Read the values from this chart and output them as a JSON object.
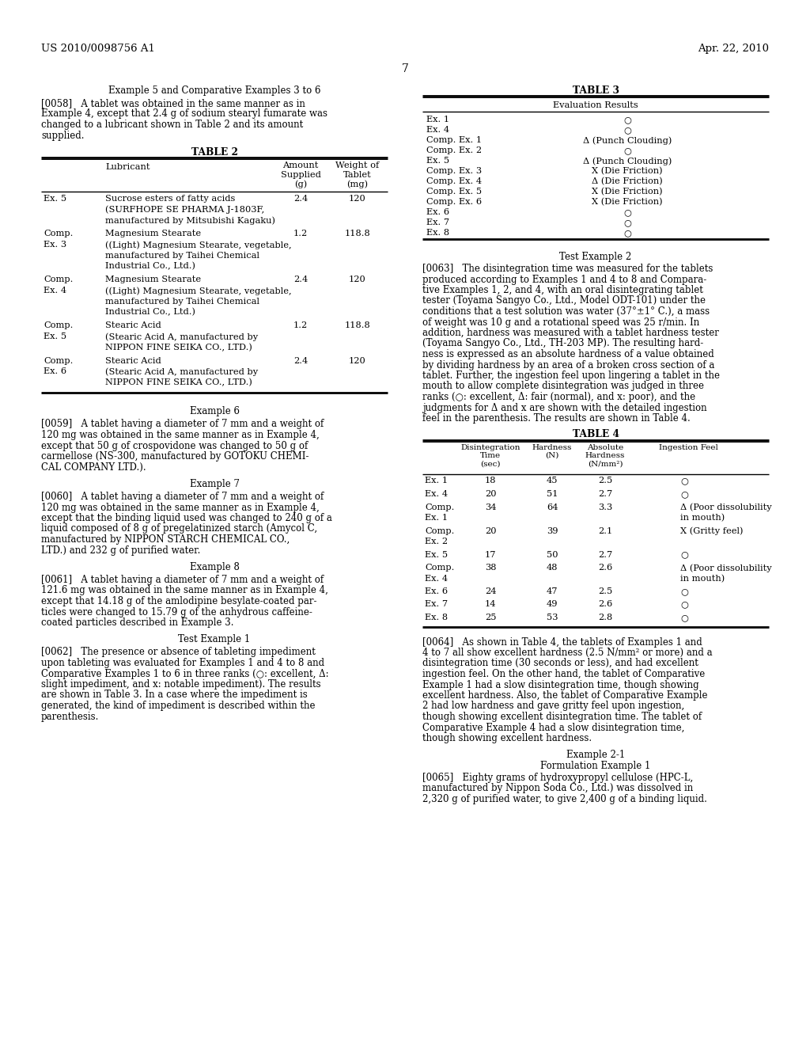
{
  "bg_color": "#ffffff",
  "header_left": "US 2010/0098756 A1",
  "header_right": "Apr. 22, 2010",
  "page_num": "7",
  "left_col": {
    "example5_title": "Example 5 and Comparative Examples 3 to 6",
    "p0058_lines": [
      "[0058]   A tablet was obtained in the same manner as in",
      "Example 4, except that 2.4 g of sodium stearyl fumarate was",
      "changed to a lubricant shown in Table 2 and its amount",
      "supplied."
    ],
    "table2_title": "TABLE 2",
    "example6_title": "Example 6",
    "p0059_lines": [
      "[0059]   A tablet having a diameter of 7 mm and a weight of",
      "120 mg was obtained in the same manner as in Example 4,",
      "except that 50 g of crospovidone was changed to 50 g of",
      "carmellose (NS-300, manufactured by GOTOKU CHEMI-",
      "CAL COMPANY LTD.)."
    ],
    "example7_title": "Example 7",
    "p0060_lines": [
      "[0060]   A tablet having a diameter of 7 mm and a weight of",
      "120 mg was obtained in the same manner as in Example 4,",
      "except that the binding liquid used was changed to 240 g of a",
      "liquid composed of 8 g of pregelatinized starch (Amycol C,",
      "manufactured by NIPPON STARCH CHEMICAL CO.,",
      "LTD.) and 232 g of purified water."
    ],
    "example8_title": "Example 8",
    "p0061_lines": [
      "[0061]   A tablet having a diameter of 7 mm and a weight of",
      "121.6 mg was obtained in the same manner as in Example 4,",
      "except that 14.18 g of the amlodipine besylate-coated par-",
      "ticles were changed to 15.79 g of the anhydrous caffeine-",
      "coated particles described in Example 3."
    ],
    "testex1_title": "Test Example 1",
    "p0062_lines": [
      "[0062]   The presence or absence of tableting impediment",
      "upon tableting was evaluated for Examples 1 and 4 to 8 and",
      "Comparative Examples 1 to 6 in three ranks (○: excellent, Δ:",
      "slight impediment, and x: notable impediment). The results",
      "are shown in Table 3. In a case where the impediment is",
      "generated, the kind of impediment is described within the",
      "parenthesis."
    ]
  },
  "right_col": {
    "table3_title": "TABLE 3",
    "table3_rows": [
      [
        "Ex. 1",
        "○"
      ],
      [
        "Ex. 4",
        "○"
      ],
      [
        "Comp. Ex. 1",
        "Δ (Punch Clouding)"
      ],
      [
        "Comp. Ex. 2",
        "○"
      ],
      [
        "Ex. 5",
        "Δ (Punch Clouding)"
      ],
      [
        "Comp. Ex. 3",
        "X (Die Friction)"
      ],
      [
        "Comp. Ex. 4",
        "Δ (Die Friction)"
      ],
      [
        "Comp. Ex. 5",
        "X (Die Friction)"
      ],
      [
        "Comp. Ex. 6",
        "X (Die Friction)"
      ],
      [
        "Ex. 6",
        "○"
      ],
      [
        "Ex. 7",
        "○"
      ],
      [
        "Ex. 8",
        "○"
      ]
    ],
    "testex2_title": "Test Example 2",
    "p0063_lines": [
      "[0063]   The disintegration time was measured for the tablets",
      "produced according to Examples 1 and 4 to 8 and Compara-",
      "tive Examples 1, 2, and 4, with an oral disintegrating tablet",
      "tester (Toyama Sangyo Co., Ltd., Model ODT-101) under the",
      "conditions that a test solution was water (37°±1° C.), a mass",
      "of weight was 10 g and a rotational speed was 25 r/min. In",
      "addition, hardness was measured with a tablet hardness tester",
      "(Toyama Sangyo Co., Ltd., TH-203 MP). The resulting hard-",
      "ness is expressed as an absolute hardness of a value obtained",
      "by dividing hardness by an area of a broken cross section of a",
      "tablet. Further, the ingestion feel upon lingering a tablet in the",
      "mouth to allow complete disintegration was judged in three",
      "ranks (○: excellent, Δ: fair (normal), and x: poor), and the",
      "judgments for Δ and x are shown with the detailed ingestion",
      "feel in the parenthesis. The results are shown in Table 4."
    ],
    "table4_title": "TABLE 4",
    "p0064_lines": [
      "[0064]   As shown in Table 4, the tablets of Examples 1 and",
      "4 to 7 all show excellent hardness (2.5 N/mm² or more) and a",
      "disintegration time (30 seconds or less), and had excellent",
      "ingestion feel. On the other hand, the tablet of Comparative",
      "Example 1 had a slow disintegration time, though showing",
      "excellent hardness. Also, the tablet of Comparative Example",
      "2 had low hardness and gave gritty feel upon ingestion,",
      "though showing excellent disintegration time. The tablet of",
      "Comparative Example 4 had a slow disintegration time,",
      "though showing excellent hardness."
    ],
    "example21_title": "Example 2-1",
    "formex1_title": "Formulation Example 1",
    "p0065_lines": [
      "[0065]   Eighty grams of hydroxypropyl cellulose (HPC-L,",
      "manufactured by Nippon Soda Co., Ltd.) was dissolved in",
      "2,320 g of purified water, to give 2,400 g of a binding liquid."
    ]
  }
}
